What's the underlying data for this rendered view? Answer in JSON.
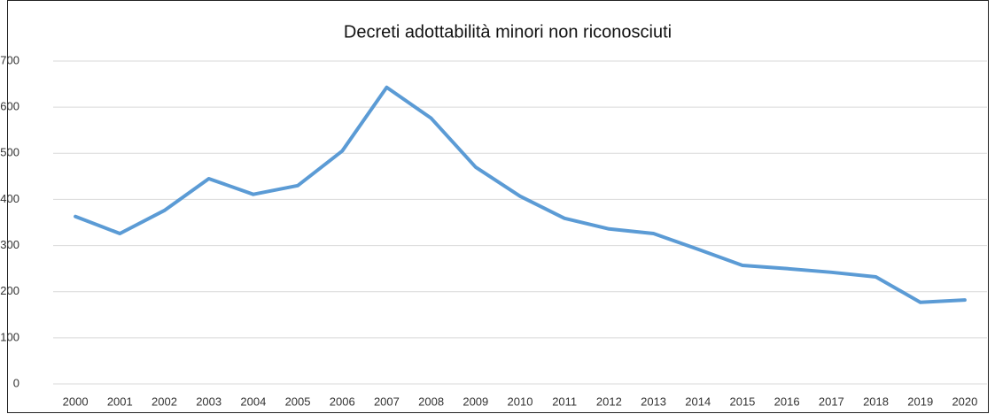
{
  "chart_data": {
    "type": "line",
    "title": "Decreti adottabilità minori non riconosciuti",
    "categories": [
      "2000",
      "2001",
      "2002",
      "2003",
      "2004",
      "2005",
      "2006",
      "2007",
      "2008",
      "2009",
      "2010",
      "2011",
      "2012",
      "2013",
      "2014",
      "2015",
      "2016",
      "2017",
      "2018",
      "2019",
      "2020"
    ],
    "series": [
      {
        "name": "Decreti",
        "color": "#5b9bd5",
        "values": [
          363,
          326,
          376,
          445,
          411,
          430,
          505,
          643,
          576,
          470,
          407,
          359,
          336,
          326,
          292,
          257,
          250,
          242,
          232,
          177,
          182
        ]
      }
    ],
    "ylim": [
      0,
      700
    ],
    "yticks": [
      0,
      100,
      200,
      300,
      400,
      500,
      600,
      700
    ],
    "grid": true
  }
}
